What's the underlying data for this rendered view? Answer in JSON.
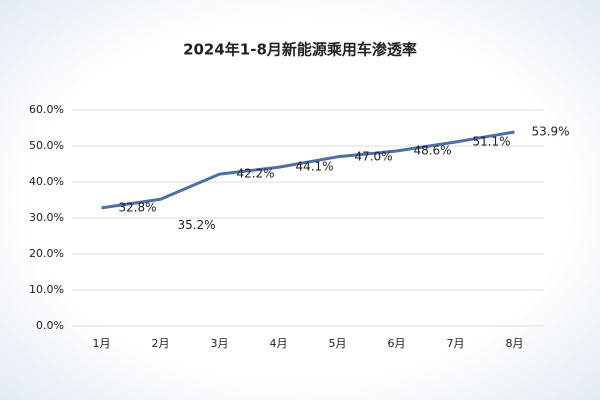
{
  "chart_data": {
    "type": "line",
    "title": "2024年1-8月新能源乘用车渗透率",
    "categories": [
      "1月",
      "2月",
      "3月",
      "4月",
      "5月",
      "6月",
      "7月",
      "8月"
    ],
    "series": [
      {
        "name": "渗透率",
        "color": "#4d6fa3",
        "values": [
          32.8,
          35.2,
          42.2,
          44.1,
          47.0,
          48.6,
          51.1,
          53.9
        ],
        "value_labels": [
          "32.8%",
          "35.2%",
          "42.2%",
          "44.1%",
          "47.0%",
          "48.6%",
          "51.1%",
          "53.9%"
        ]
      }
    ],
    "ylim": [
      0,
      60
    ],
    "yticks": [
      {
        "value": 0,
        "label": "0.0%"
      },
      {
        "value": 10,
        "label": "10.0%"
      },
      {
        "value": 20,
        "label": "20.0%"
      },
      {
        "value": 30,
        "label": "30.0%"
      },
      {
        "value": 40,
        "label": "40.0%"
      },
      {
        "value": 50,
        "label": "50.0%"
      },
      {
        "value": 60,
        "label": "60.0%"
      }
    ],
    "grid": true
  }
}
